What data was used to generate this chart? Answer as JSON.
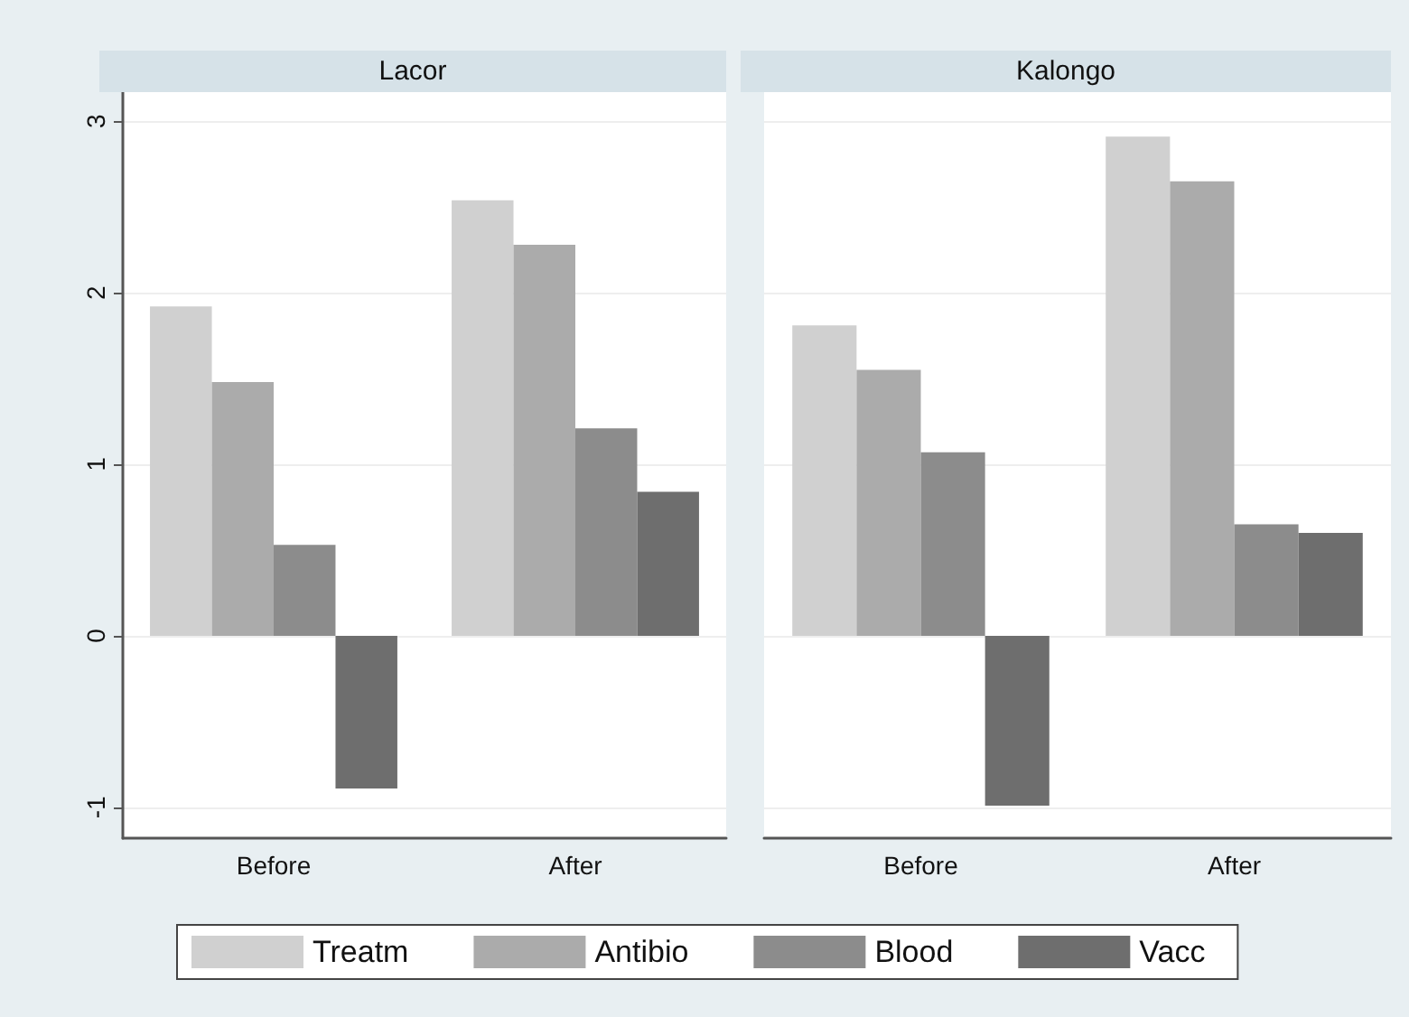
{
  "chart_data": [
    {
      "type": "bar",
      "title": "Lacor",
      "categories": [
        "Before",
        "After"
      ],
      "series": [
        {
          "name": "Treatm",
          "color": "#d0d0d0",
          "values": [
            1.92,
            2.54
          ]
        },
        {
          "name": "Antibio",
          "color": "#ababab",
          "values": [
            1.48,
            2.28
          ]
        },
        {
          "name": "Blood",
          "color": "#8c8c8c",
          "values": [
            0.53,
            1.21
          ]
        },
        {
          "name": "Vacc",
          "color": "#6e6e6e",
          "values": [
            -0.89,
            0.84
          ]
        }
      ],
      "ylim": [
        -1.18,
        3.17
      ],
      "yticks": [
        -1,
        0,
        1,
        2,
        3
      ],
      "grid": "y",
      "legend": "bottom"
    },
    {
      "type": "bar",
      "title": "Kalongo",
      "categories": [
        "Before",
        "After"
      ],
      "series": [
        {
          "color": "#d0d0d0",
          "values": [
            1.81,
            2.91
          ]
        },
        {
          "color": "#ababab",
          "values": [
            1.55,
            2.65
          ]
        },
        {
          "color": "#8c8c8c",
          "values": [
            1.07,
            0.65
          ]
        },
        {
          "color": "#6e6e6e",
          "values": [
            -0.99,
            0.6
          ]
        }
      ],
      "ylim": [
        -1.18,
        3.17
      ],
      "yticks": [
        -1,
        0,
        1,
        2,
        3
      ],
      "grid": "y",
      "tick_labels": "x"
    }
  ]
}
